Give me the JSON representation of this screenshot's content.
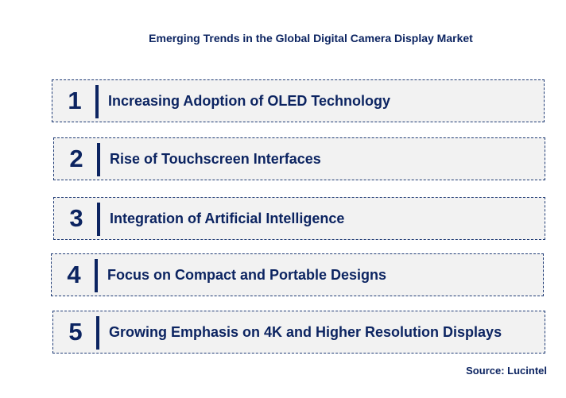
{
  "title": "Emerging Trends in the Global Digital Camera Display Market",
  "items": [
    {
      "number": "1",
      "label": "Increasing Adoption of OLED Technology"
    },
    {
      "number": "2",
      "label": "Rise of Touchscreen Interfaces"
    },
    {
      "number": "3",
      "label": "Integration of Artificial Intelligence"
    },
    {
      "number": "4",
      "label": "Focus on Compact and Portable Designs"
    },
    {
      "number": "5",
      "label": "Growing Emphasis on 4K and Higher Resolution Displays"
    }
  ],
  "source": "Source: Lucintel",
  "colors": {
    "text": "#0c2461",
    "box_bg": "#f2f2f2"
  }
}
